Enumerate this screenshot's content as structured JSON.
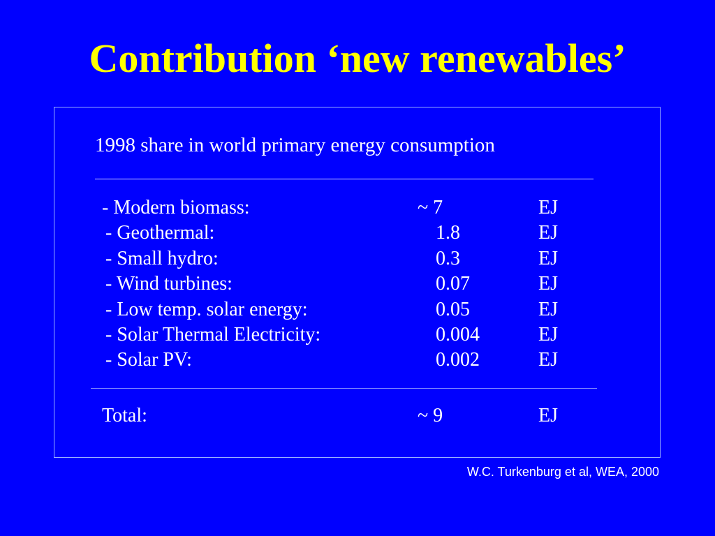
{
  "slide": {
    "title": "Contribution ‘new renewables’",
    "heading": "1998 share in world primary energy consumption",
    "separator_1": "____________________________________________________",
    "rows": [
      {
        "label": "- Modern biomass:",
        "value": "~ 7",
        "unit": "EJ"
      },
      {
        "label": "- Geothermal:",
        "value": "1.8",
        "unit": "EJ"
      },
      {
        "label": "- Small hydro:",
        "value": "0.3",
        "unit": "EJ"
      },
      {
        "label": "- Wind turbines:",
        "value": "0.07",
        "unit": "EJ"
      },
      {
        "label": "- Low temp. solar energy:",
        "value": "0.05",
        "unit": "EJ"
      },
      {
        "label": "- Solar Thermal Electricity:",
        "value": "0.004",
        "unit": "EJ"
      },
      {
        "label": "- Solar PV:",
        "value": "0.002",
        "unit": "EJ"
      }
    ],
    "total": {
      "label": "Total:",
      "value": "~ 9",
      "unit": "EJ"
    },
    "source": "W.C. Turkenburg et al, WEA, 2000"
  },
  "colors": {
    "background": "#0000ff",
    "title": "#ffff00",
    "text": "#ffffff"
  }
}
